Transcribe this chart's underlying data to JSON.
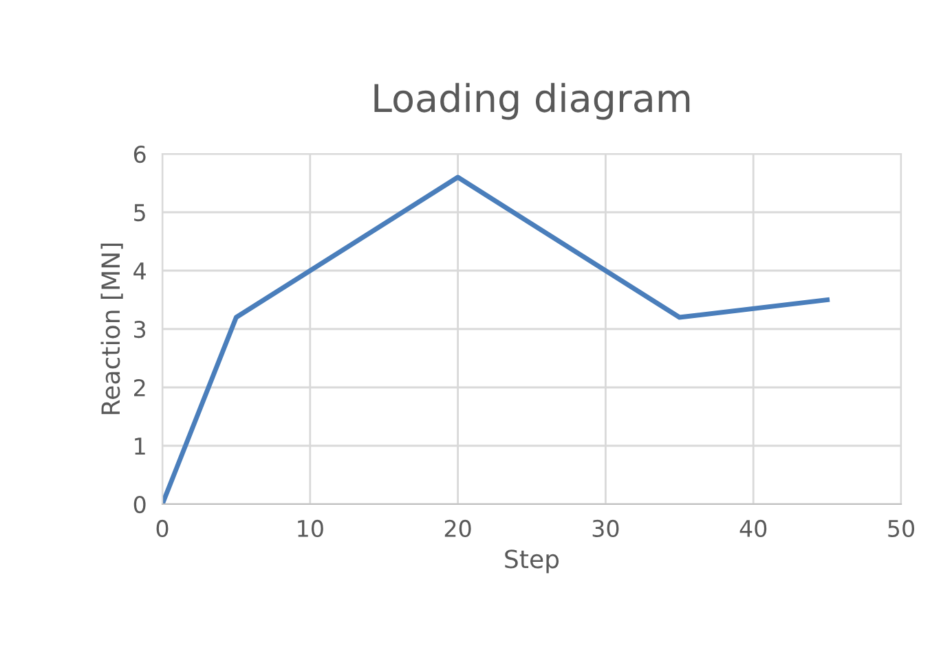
{
  "chart_data": {
    "type": "line",
    "title": "Loading diagram",
    "xlabel": "Step",
    "ylabel": "Reaction [MN]",
    "x": [
      0,
      5,
      20,
      35,
      45
    ],
    "series": [
      {
        "color": "#4a7ebb",
        "values": [
          0,
          3.2,
          5.6,
          3.2,
          3.5
        ]
      }
    ],
    "xlim": [
      0,
      50
    ],
    "xticks": [
      0,
      10,
      20,
      30,
      40,
      50
    ],
    "ylim": [
      0,
      6
    ],
    "yticks": [
      0,
      1,
      2,
      3,
      4,
      5,
      6
    ],
    "grid": true,
    "marker": "none",
    "line_style": "solid",
    "legend": false
  }
}
